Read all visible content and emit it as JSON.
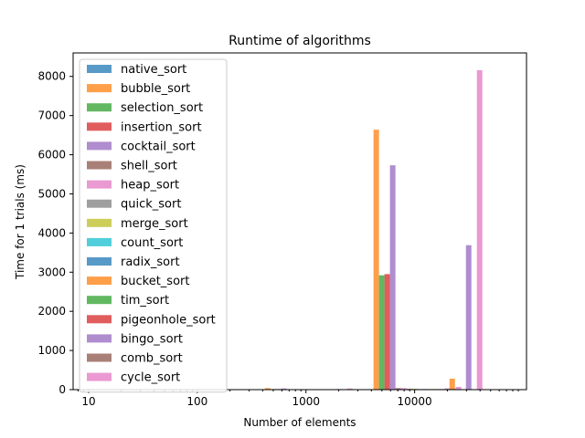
{
  "chart_data": {
    "type": "bar",
    "title": "Runtime of algorithms",
    "xlabel": "Number of elements",
    "ylabel": "Time for 1 trials (ms)",
    "x_scale": "log",
    "x_ticks": [
      10,
      100,
      1000,
      10000
    ],
    "x_tick_labels": [
      "10",
      "100",
      "1000",
      "10000"
    ],
    "xlim": [
      7.2,
      107000
    ],
    "ylim": [
      0,
      8600
    ],
    "y_ticks": [
      0,
      1000,
      2000,
      3000,
      4000,
      5000,
      6000,
      7000,
      8000
    ],
    "y_tick_labels": [
      "0",
      "1000",
      "2000",
      "3000",
      "4000",
      "5000",
      "6000",
      "7000",
      "8000"
    ],
    "grid": false,
    "legend_position": "upper left",
    "categories": [
      10,
      100,
      1000,
      10000,
      50000
    ],
    "series": [
      {
        "name": "native_sort",
        "color": "#1f77b4",
        "values": [
          0,
          0,
          0,
          2,
          10
        ]
      },
      {
        "name": "bubble_sort",
        "color": "#ff7f0e",
        "values": [
          0,
          0,
          40,
          6640,
          280
        ]
      },
      {
        "name": "selection_sort",
        "color": "#2ca02c",
        "values": [
          0,
          0,
          15,
          2920,
          0
        ]
      },
      {
        "name": "insertion_sort",
        "color": "#d62728",
        "values": [
          0,
          0,
          15,
          2950,
          0
        ]
      },
      {
        "name": "cocktail_sort",
        "color": "#9467bd",
        "values": [
          0,
          0,
          30,
          5730,
          3690
        ]
      },
      {
        "name": "shell_sort",
        "color": "#8c564b",
        "values": [
          0,
          0,
          5,
          40,
          0
        ]
      },
      {
        "name": "heap_sort",
        "color": "#e377c2",
        "values": [
          0,
          0,
          5,
          40,
          8160
        ]
      },
      {
        "name": "quick_sort",
        "color": "#7f7f7f",
        "values": [
          0,
          0,
          5,
          25,
          0
        ]
      },
      {
        "name": "merge_sort",
        "color": "#bcbd22",
        "values": [
          0,
          0,
          5,
          25,
          0
        ]
      },
      {
        "name": "count_sort",
        "color": "#17becf",
        "values": [
          0,
          0,
          5,
          15,
          0
        ]
      },
      {
        "name": "radix_sort",
        "color": "#1f77b4",
        "values": [
          0,
          0,
          5,
          15,
          0
        ]
      },
      {
        "name": "bucket_sort",
        "color": "#ff7f0e",
        "values": [
          0,
          0,
          5,
          15,
          0
        ]
      },
      {
        "name": "tim_sort",
        "color": "#2ca02c",
        "values": [
          0,
          0,
          5,
          15,
          0
        ]
      },
      {
        "name": "pigeonhole_sort",
        "color": "#d62728",
        "values": [
          0,
          0,
          5,
          15,
          0
        ]
      },
      {
        "name": "bingo_sort",
        "color": "#9467bd",
        "values": [
          0,
          0,
          15,
          30,
          0
        ]
      },
      {
        "name": "comb_sort",
        "color": "#8c564b",
        "values": [
          0,
          0,
          5,
          25,
          0
        ]
      },
      {
        "name": "cycle_sort",
        "color": "#e377c2",
        "values": [
          0,
          0,
          30,
          70,
          0
        ]
      }
    ]
  }
}
